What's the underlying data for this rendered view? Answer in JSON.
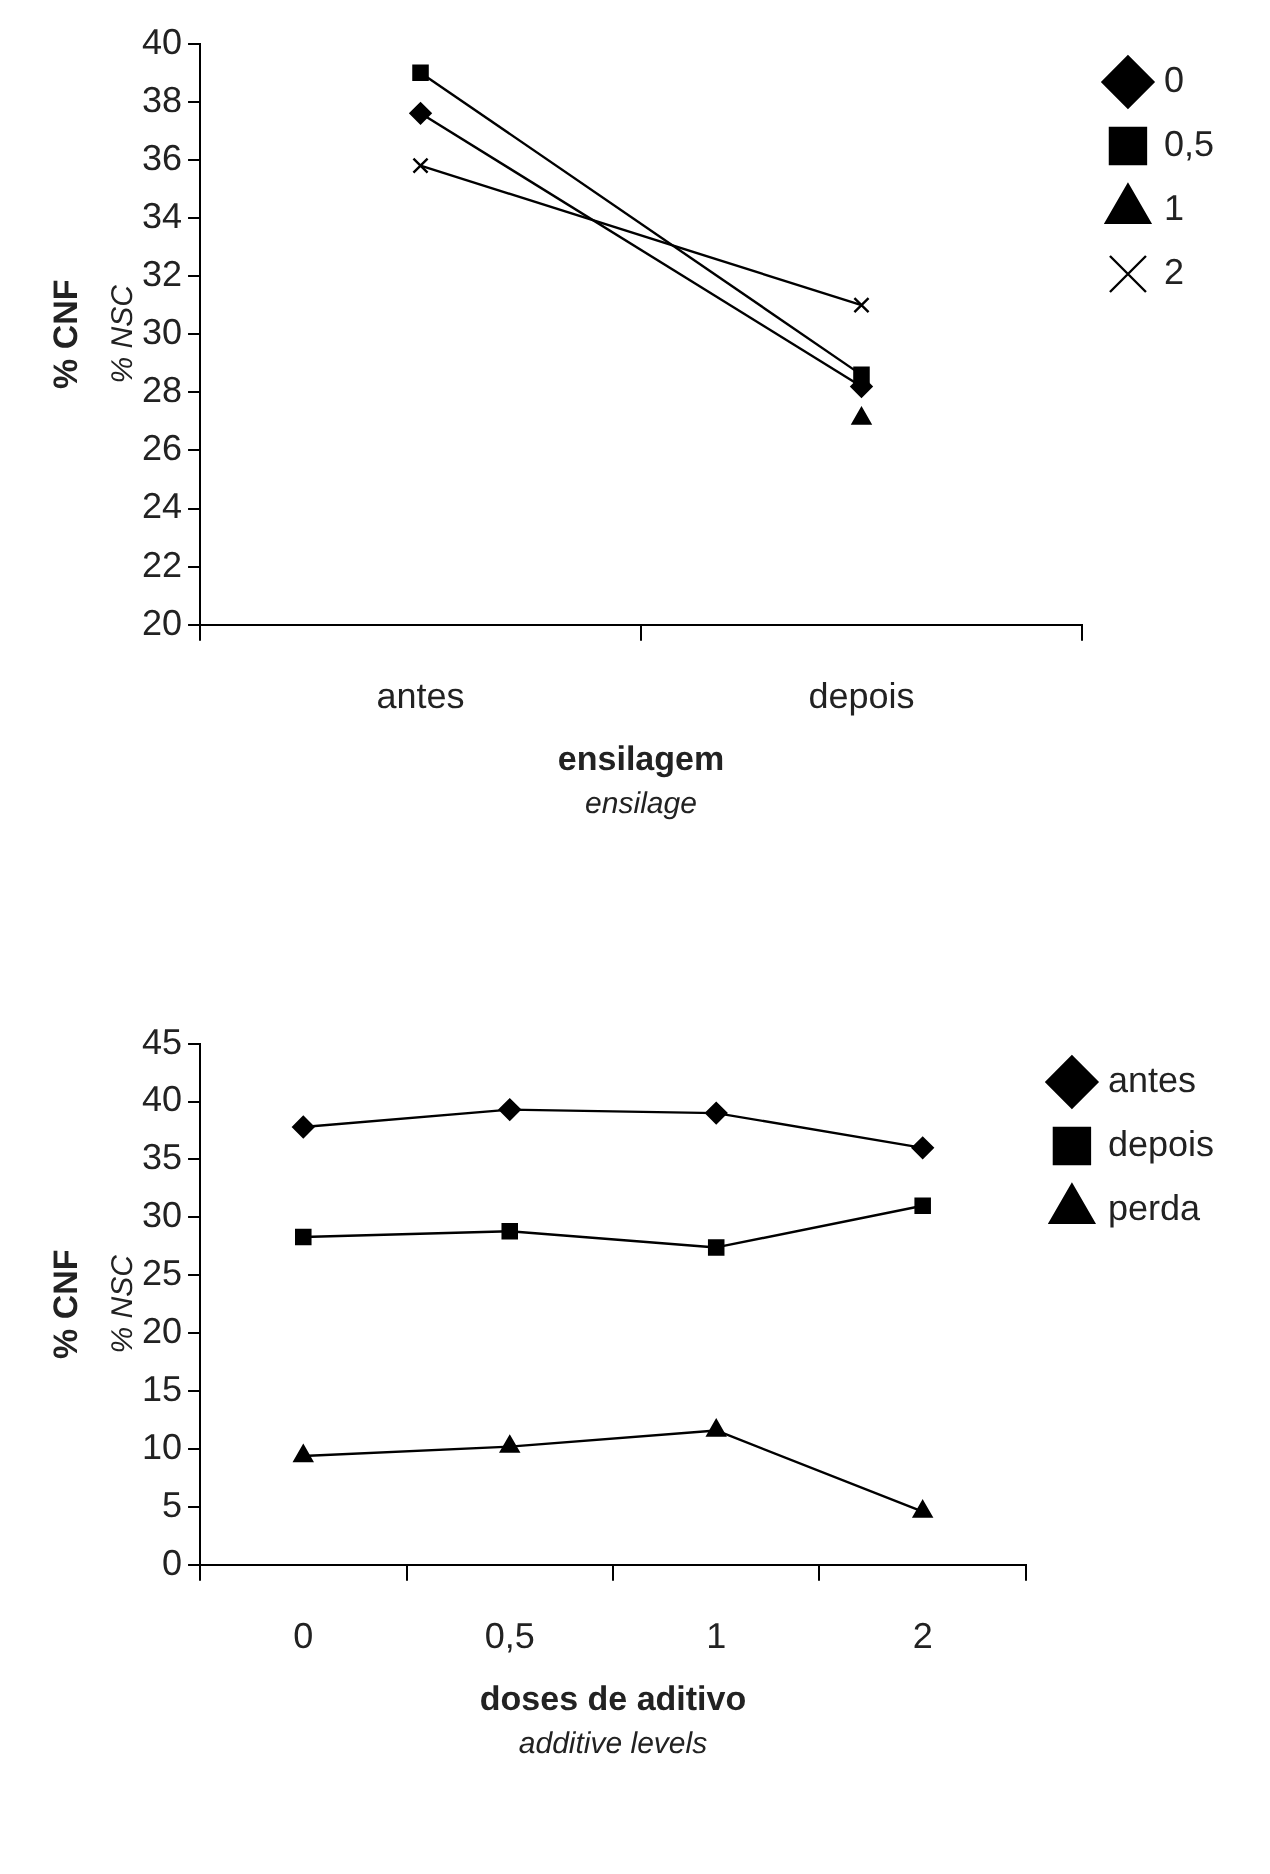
{
  "chart_data": [
    {
      "type": "line",
      "categories": [
        "antes",
        "depois"
      ],
      "xlabel": [
        "ensilagem",
        "ensilage"
      ],
      "ylabel": [
        "% CNF",
        "% NSC"
      ],
      "ylim": [
        20,
        40
      ],
      "yticks": [
        20,
        22,
        24,
        26,
        28,
        30,
        32,
        34,
        36,
        38,
        40
      ],
      "grid": false,
      "legend": "right",
      "series": [
        {
          "name": "0",
          "color": "#000000",
          "marker": "diamond",
          "values": [
            37.6,
            28.2
          ]
        },
        {
          "name": "0,5",
          "color": "#000000",
          "marker": "square",
          "values": [
            39.0,
            28.6
          ]
        },
        {
          "name": "1",
          "color": "#000000",
          "marker": "triangle",
          "values": [
            null,
            27.1
          ]
        },
        {
          "name": "2",
          "color": "#000000",
          "marker": "cross",
          "values": [
            35.8,
            31.0
          ]
        }
      ]
    },
    {
      "type": "line",
      "categories": [
        "0",
        "0,5",
        "1",
        "2"
      ],
      "xlabel": [
        "doses de aditivo",
        "additive levels"
      ],
      "ylabel": [
        "% CNF",
        "% NSC"
      ],
      "ylim": [
        0,
        45
      ],
      "yticks": [
        0,
        5,
        10,
        15,
        20,
        25,
        30,
        35,
        40,
        45
      ],
      "grid": false,
      "legend": "right",
      "series": [
        {
          "name": "antes",
          "color": "#000000",
          "marker": "diamond",
          "values": [
            37.8,
            39.3,
            39.0,
            36.0
          ]
        },
        {
          "name": "depois",
          "color": "#000000",
          "marker": "square",
          "values": [
            28.3,
            28.8,
            27.4,
            31.0
          ]
        },
        {
          "name": "perda",
          "color": "#000000",
          "marker": "triangle",
          "values": [
            9.4,
            10.2,
            11.6,
            4.6
          ]
        }
      ]
    }
  ]
}
